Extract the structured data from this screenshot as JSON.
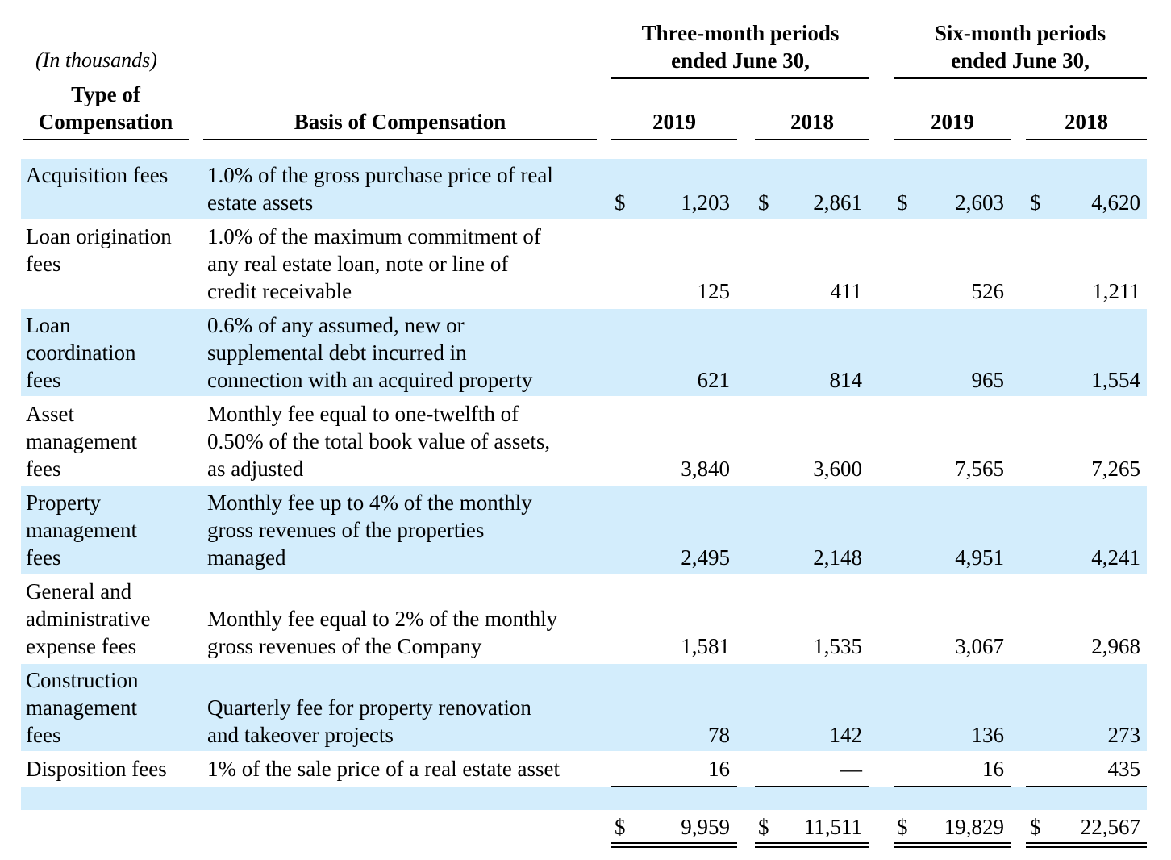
{
  "header": {
    "unit_note": "(In thousands)",
    "col_type": "Type of\nCompensation",
    "col_basis": "Basis of Compensation",
    "group_three": "Three-month periods\nended June 30,",
    "group_six": "Six-month periods\nended June 30,",
    "years": [
      "2019",
      "2018",
      "2019",
      "2018"
    ]
  },
  "currency_symbol": "$",
  "rows": [
    {
      "type": "Acquisition fees",
      "basis": "1.0% of the gross purchase price of real\nestate assets",
      "values": [
        "1,203",
        "2,861",
        "2,603",
        "4,620"
      ]
    },
    {
      "type": "Loan origination\nfees",
      "basis": "1.0% of the maximum commitment of\nany real estate loan, note or line of\ncredit receivable",
      "values": [
        "125",
        "411",
        "526",
        "1,211"
      ]
    },
    {
      "type": "Loan\ncoordination\nfees",
      "basis": "0.6% of any assumed, new or\nsupplemental debt incurred in\nconnection with an acquired property",
      "values": [
        "621",
        "814",
        "965",
        "1,554"
      ]
    },
    {
      "type": "Asset\nmanagement\nfees",
      "basis": "Monthly fee equal to one-twelfth of\n0.50% of the total book value of assets,\nas adjusted",
      "values": [
        "3,840",
        "3,600",
        "7,565",
        "7,265"
      ]
    },
    {
      "type": "Property\nmanagement\nfees",
      "basis": "Monthly fee up to 4% of the monthly\ngross revenues of the properties\nmanaged",
      "values": [
        "2,495",
        "2,148",
        "4,951",
        "4,241"
      ]
    },
    {
      "type": "General and\nadministrative\nexpense fees",
      "basis": "Monthly fee equal to 2% of the monthly\ngross revenues of the Company",
      "values": [
        "1,581",
        "1,535",
        "3,067",
        "2,968"
      ]
    },
    {
      "type": "Construction\nmanagement\nfees",
      "basis": "Quarterly fee for property renovation\nand takeover projects",
      "values": [
        "78",
        "142",
        "136",
        "273"
      ]
    },
    {
      "type": "Disposition fees",
      "basis": "1% of the sale price of a real estate asset",
      "values": [
        "16",
        "—",
        "16",
        "435"
      ]
    }
  ],
  "total": {
    "values": [
      "9,959",
      "11,511",
      "19,829",
      "22,567"
    ]
  }
}
